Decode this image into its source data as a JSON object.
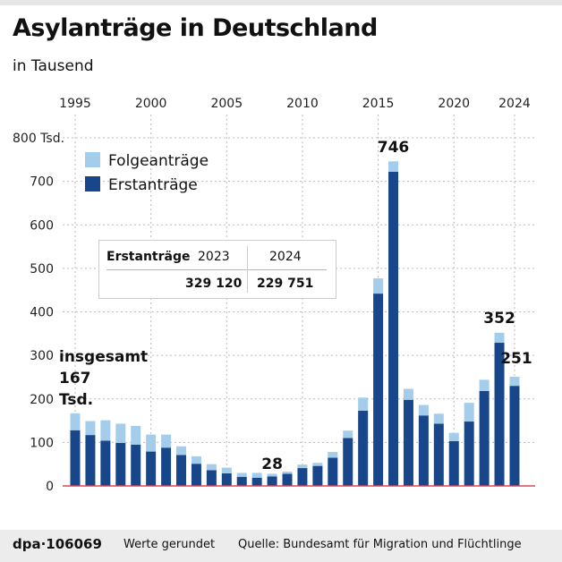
{
  "title": "Asylanträge in Deutschland",
  "subtitle": "in Tausend",
  "chart_data": {
    "type": "bar",
    "stacked": true,
    "categories": [
      1995,
      1996,
      1997,
      1998,
      1999,
      2000,
      2001,
      2002,
      2003,
      2004,
      2005,
      2006,
      2007,
      2008,
      2009,
      2010,
      2011,
      2012,
      2013,
      2014,
      2015,
      2016,
      2017,
      2018,
      2019,
      2020,
      2021,
      2022,
      2023,
      2024
    ],
    "x_tick_labels": [
      "1995",
      "2000",
      "2005",
      "2010",
      "2015",
      "2020",
      "2024"
    ],
    "y_tick_labels": [
      "0",
      "100",
      "200",
      "300",
      "400",
      "500",
      "600",
      "700",
      "800 Tsd."
    ],
    "ylim": [
      0,
      800
    ],
    "grid": true,
    "legend_placement": "top-left",
    "series": [
      {
        "name": "Erstanträge",
        "color": "#17468a",
        "values": [
          128,
          117,
          104,
          99,
          95,
          79,
          88,
          71,
          51,
          36,
          29,
          21,
          19,
          22,
          28,
          41,
          46,
          65,
          110,
          173,
          442,
          722,
          198,
          162,
          143,
          103,
          148,
          218,
          329,
          230
        ]
      },
      {
        "name": "Folgeanträge",
        "color": "#a4cdec",
        "values": [
          39,
          32,
          47,
          44,
          43,
          39,
          30,
          20,
          17,
          14,
          13,
          9,
          11,
          6,
          5,
          8,
          7,
          13,
          17,
          30,
          35,
          24,
          25,
          24,
          23,
          19,
          43,
          26,
          23,
          21
        ]
      }
    ],
    "totals": [
      167,
      149,
      151,
      143,
      138,
      118,
      118,
      91,
      68,
      50,
      42,
      30,
      30,
      28,
      33,
      49,
      53,
      78,
      127,
      203,
      477,
      746,
      223,
      186,
      166,
      122,
      191,
      244,
      352,
      251
    ],
    "annotations": {
      "first_label_line1": "insgesamt",
      "first_label_line2": "167",
      "first_label_line3": "Tsd.",
      "a2008": "28",
      "a2016": "746",
      "a2023": "352",
      "a2024": "251"
    }
  },
  "table": {
    "label": "Erstanträge",
    "year1": "2023",
    "year2": "2024",
    "value1": "329 120",
    "value2": "229 751"
  },
  "footer": {
    "id": "dpa·106069",
    "note": "Werte gerundet",
    "source": "Quelle: Bundesamt für Migration und Flüchtlinge"
  }
}
